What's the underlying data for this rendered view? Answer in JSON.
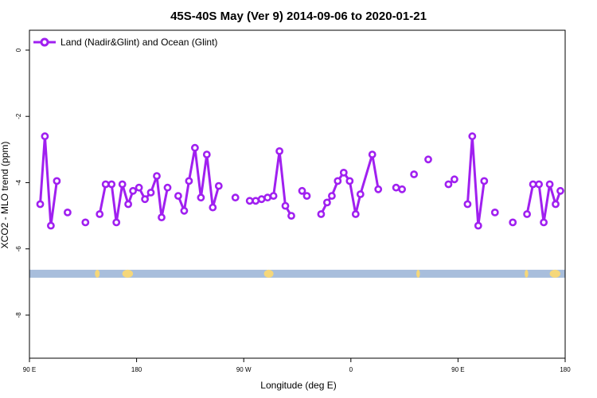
{
  "chart_data": {
    "type": "line",
    "title": "45S-40S May (Ver 9)   2014-09-06 to 2020-01-21",
    "xlabel": "Longitude (deg E)",
    "ylabel": "XCO2 - MLO trend (ppm)",
    "xlim": [
      90,
      540
    ],
    "ylim": [
      -9.3,
      0.6
    ],
    "x_ticks": [
      {
        "value": 90,
        "label": "90 E"
      },
      {
        "value": 180,
        "label": "180"
      },
      {
        "value": 270,
        "label": "90 W"
      },
      {
        "value": 360,
        "label": "0"
      },
      {
        "value": 450,
        "label": "90 E"
      },
      {
        "value": 540,
        "label": "180"
      }
    ],
    "y_ticks": [
      {
        "value": 0,
        "label": "0"
      },
      {
        "value": -2,
        "label": "-2"
      },
      {
        "value": -4,
        "label": "-4"
      },
      {
        "value": -6,
        "label": "-6"
      },
      {
        "value": -8,
        "label": "-8"
      }
    ],
    "grid": false,
    "legend_position": "top-left",
    "colors": {
      "series": "#a020f0",
      "ocean": "#a8bedc",
      "land": "#f5d77a"
    },
    "series": [
      {
        "name": "Land (Nadir&Glint) and Ocean (Glint)",
        "segments": [
          [
            {
              "x": 99,
              "y": -4.65
            },
            {
              "x": 103,
              "y": -2.6
            },
            {
              "x": 108,
              "y": -5.3
            },
            {
              "x": 113,
              "y": -3.95
            }
          ],
          [
            {
              "x": 122,
              "y": -4.9
            }
          ],
          [
            {
              "x": 137,
              "y": -5.2
            }
          ],
          [
            {
              "x": 149,
              "y": -4.95
            },
            {
              "x": 154,
              "y": -4.05
            },
            {
              "x": 159,
              "y": -4.05
            },
            {
              "x": 163,
              "y": -5.2
            },
            {
              "x": 168,
              "y": -4.05
            },
            {
              "x": 173,
              "y": -4.65
            },
            {
              "x": 177,
              "y": -4.25
            },
            {
              "x": 182,
              "y": -4.15
            },
            {
              "x": 187,
              "y": -4.5
            },
            {
              "x": 192,
              "y": -4.3
            },
            {
              "x": 197,
              "y": -3.8
            },
            {
              "x": 201,
              "y": -5.05
            },
            {
              "x": 206,
              "y": -4.15
            }
          ],
          [
            {
              "x": 215,
              "y": -4.4
            },
            {
              "x": 220,
              "y": -4.85
            },
            {
              "x": 224,
              "y": -3.95
            },
            {
              "x": 229,
              "y": -2.95
            },
            {
              "x": 234,
              "y": -4.45
            },
            {
              "x": 239,
              "y": -3.15
            },
            {
              "x": 244,
              "y": -4.75
            },
            {
              "x": 249,
              "y": -4.1
            }
          ],
          [
            {
              "x": 263,
              "y": -4.45
            }
          ],
          [
            {
              "x": 275,
              "y": -4.55
            },
            {
              "x": 280,
              "y": -4.55
            },
            {
              "x": 285,
              "y": -4.5
            },
            {
              "x": 290,
              "y": -4.45
            },
            {
              "x": 295,
              "y": -4.4
            },
            {
              "x": 300,
              "y": -3.05
            },
            {
              "x": 305,
              "y": -4.7
            },
            {
              "x": 310,
              "y": -5.0
            }
          ],
          [
            {
              "x": 319,
              "y": -4.25
            },
            {
              "x": 323,
              "y": -4.4
            }
          ],
          [
            {
              "x": 335,
              "y": -4.95
            },
            {
              "x": 340,
              "y": -4.6
            },
            {
              "x": 344,
              "y": -4.4
            },
            {
              "x": 349,
              "y": -3.95
            },
            {
              "x": 354,
              "y": -3.7
            },
            {
              "x": 359,
              "y": -3.95
            },
            {
              "x": 364,
              "y": -4.95
            },
            {
              "x": 368,
              "y": -4.35
            },
            {
              "x": 378,
              "y": -3.15
            },
            {
              "x": 383,
              "y": -4.2
            }
          ],
          [
            {
              "x": 398,
              "y": -4.15
            },
            {
              "x": 403,
              "y": -4.2
            }
          ],
          [
            {
              "x": 413,
              "y": -3.75
            }
          ],
          [
            {
              "x": 425,
              "y": -3.3
            }
          ],
          [
            {
              "x": 442,
              "y": -4.05
            },
            {
              "x": 447,
              "y": -3.9
            }
          ],
          [
            {
              "x": 458,
              "y": -4.65
            },
            {
              "x": 462,
              "y": -2.6
            },
            {
              "x": 467,
              "y": -5.3
            },
            {
              "x": 472,
              "y": -3.95
            }
          ],
          [
            {
              "x": 481,
              "y": -4.9
            }
          ],
          [
            {
              "x": 496,
              "y": -5.2
            }
          ],
          [
            {
              "x": 508,
              "y": -4.95
            },
            {
              "x": 513,
              "y": -4.05
            },
            {
              "x": 518,
              "y": -4.05
            },
            {
              "x": 522,
              "y": -5.2
            },
            {
              "x": 527,
              "y": -4.05
            },
            {
              "x": 532,
              "y": -4.65
            },
            {
              "x": 536,
              "y": -4.25
            }
          ]
        ]
      }
    ],
    "surface_strip": {
      "y": -6.75,
      "land_ranges": [
        [
          145,
          149
        ],
        [
          168,
          177
        ],
        [
          287,
          295
        ],
        [
          415,
          418
        ],
        [
          506,
          509
        ],
        [
          527,
          536
        ]
      ]
    }
  }
}
